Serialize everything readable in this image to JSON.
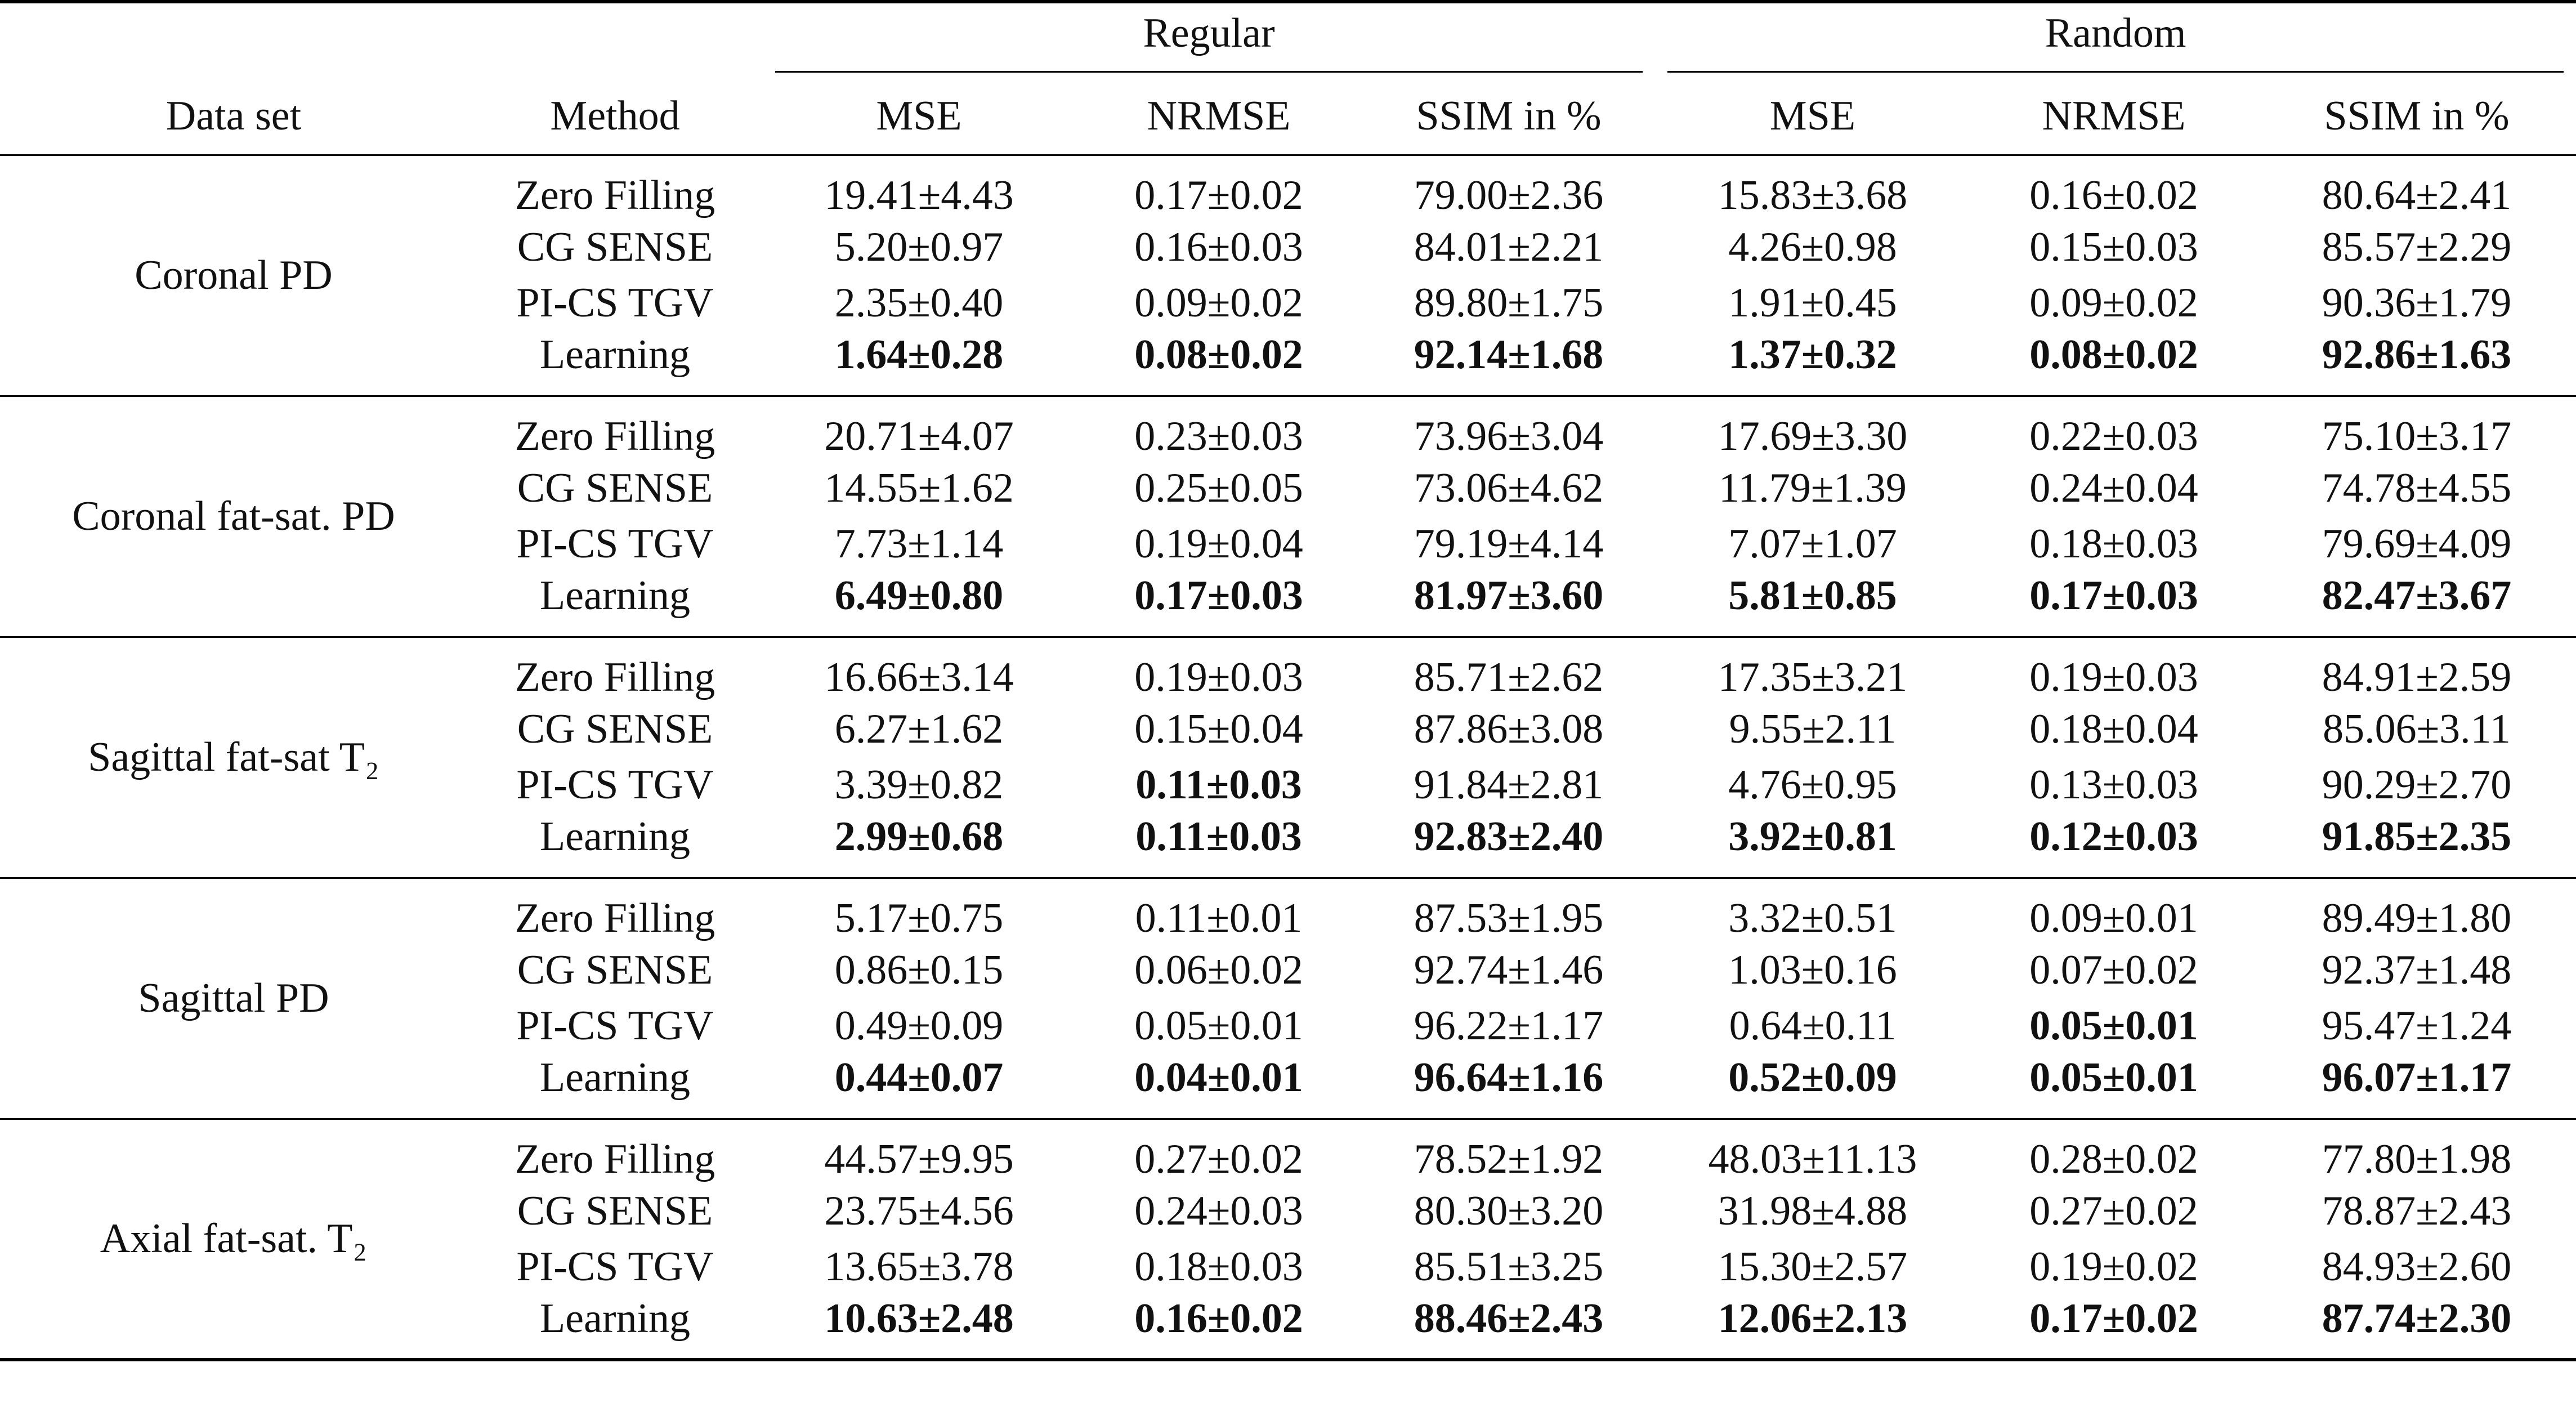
{
  "header": {
    "groups": [
      "Regular",
      "Random"
    ],
    "columns": [
      "Data set",
      "Method",
      "MSE",
      "NRMSE",
      "SSIM in %",
      "MSE",
      "NRMSE",
      "SSIM in %"
    ]
  },
  "table": {
    "groups": [
      {
        "dataset": "Coronal PD",
        "rows": [
          {
            "method": "Zero Filling",
            "cells": [
              "19.41±4.43",
              "0.17±0.02",
              "79.00±2.36",
              "15.83±3.68",
              "0.16±0.02",
              "80.64±2.41"
            ],
            "bold": [
              false,
              false,
              false,
              false,
              false,
              false
            ]
          },
          {
            "method": "CG SENSE",
            "cells": [
              "5.20±0.97",
              "0.16±0.03",
              "84.01±2.21",
              "4.26±0.98",
              "0.15±0.03",
              "85.57±2.29"
            ],
            "bold": [
              false,
              false,
              false,
              false,
              false,
              false
            ]
          },
          {
            "method": "PI-CS TGV",
            "cells": [
              "2.35±0.40",
              "0.09±0.02",
              "89.80±1.75",
              "1.91±0.45",
              "0.09±0.02",
              "90.36±1.79"
            ],
            "bold": [
              false,
              false,
              false,
              false,
              false,
              false
            ]
          },
          {
            "method": "Learning",
            "cells": [
              "1.64±0.28",
              "0.08±0.02",
              "92.14±1.68",
              "1.37±0.32",
              "0.08±0.02",
              "92.86±1.63"
            ],
            "bold": [
              true,
              true,
              true,
              true,
              true,
              true
            ]
          }
        ]
      },
      {
        "dataset": "Coronal fat-sat. PD",
        "rows": [
          {
            "method": "Zero Filling",
            "cells": [
              "20.71±4.07",
              "0.23±0.03",
              "73.96±3.04",
              "17.69±3.30",
              "0.22±0.03",
              "75.10±3.17"
            ],
            "bold": [
              false,
              false,
              false,
              false,
              false,
              false
            ]
          },
          {
            "method": "CG SENSE",
            "cells": [
              "14.55±1.62",
              "0.25±0.05",
              "73.06±4.62",
              "11.79±1.39",
              "0.24±0.04",
              "74.78±4.55"
            ],
            "bold": [
              false,
              false,
              false,
              false,
              false,
              false
            ]
          },
          {
            "method": "PI-CS TGV",
            "cells": [
              "7.73±1.14",
              "0.19±0.04",
              "79.19±4.14",
              "7.07±1.07",
              "0.18±0.03",
              "79.69±4.09"
            ],
            "bold": [
              false,
              false,
              false,
              false,
              false,
              false
            ]
          },
          {
            "method": "Learning",
            "cells": [
              "6.49±0.80",
              "0.17±0.03",
              "81.97±3.60",
              "5.81±0.85",
              "0.17±0.03",
              "82.47±3.67"
            ],
            "bold": [
              true,
              true,
              true,
              true,
              true,
              true
            ]
          }
        ]
      },
      {
        "dataset": "Sagittal fat-sat T₂",
        "rows": [
          {
            "method": "Zero Filling",
            "cells": [
              "16.66±3.14",
              "0.19±0.03",
              "85.71±2.62",
              "17.35±3.21",
              "0.19±0.03",
              "84.91±2.59"
            ],
            "bold": [
              false,
              false,
              false,
              false,
              false,
              false
            ]
          },
          {
            "method": "CG SENSE",
            "cells": [
              "6.27±1.62",
              "0.15±0.04",
              "87.86±3.08",
              "9.55±2.11",
              "0.18±0.04",
              "85.06±3.11"
            ],
            "bold": [
              false,
              false,
              false,
              false,
              false,
              false
            ]
          },
          {
            "method": "PI-CS TGV",
            "cells": [
              "3.39±0.82",
              "0.11±0.03",
              "91.84±2.81",
              "4.76±0.95",
              "0.13±0.03",
              "90.29±2.70"
            ],
            "bold": [
              false,
              true,
              false,
              false,
              false,
              false
            ]
          },
          {
            "method": "Learning",
            "cells": [
              "2.99±0.68",
              "0.11±0.03",
              "92.83±2.40",
              "3.92±0.81",
              "0.12±0.03",
              "91.85±2.35"
            ],
            "bold": [
              true,
              true,
              true,
              true,
              true,
              true
            ]
          }
        ]
      },
      {
        "dataset": "Sagittal PD",
        "rows": [
          {
            "method": "Zero Filling",
            "cells": [
              "5.17±0.75",
              "0.11±0.01",
              "87.53±1.95",
              "3.32±0.51",
              "0.09±0.01",
              "89.49±1.80"
            ],
            "bold": [
              false,
              false,
              false,
              false,
              false,
              false
            ]
          },
          {
            "method": "CG SENSE",
            "cells": [
              "0.86±0.15",
              "0.06±0.02",
              "92.74±1.46",
              "1.03±0.16",
              "0.07±0.02",
              "92.37±1.48"
            ],
            "bold": [
              false,
              false,
              false,
              false,
              false,
              false
            ]
          },
          {
            "method": "PI-CS TGV",
            "cells": [
              "0.49±0.09",
              "0.05±0.01",
              "96.22±1.17",
              "0.64±0.11",
              "0.05±0.01",
              "95.47±1.24"
            ],
            "bold": [
              false,
              false,
              false,
              false,
              true,
              false
            ]
          },
          {
            "method": "Learning",
            "cells": [
              "0.44±0.07",
              "0.04±0.01",
              "96.64±1.16",
              "0.52±0.09",
              "0.05±0.01",
              "96.07±1.17"
            ],
            "bold": [
              true,
              true,
              true,
              true,
              true,
              true
            ]
          }
        ]
      },
      {
        "dataset": "Axial fat-sat. T₂",
        "rows": [
          {
            "method": "Zero Filling",
            "cells": [
              "44.57±9.95",
              "0.27±0.02",
              "78.52±1.92",
              "48.03±11.13",
              "0.28±0.02",
              "77.80±1.98"
            ],
            "bold": [
              false,
              false,
              false,
              false,
              false,
              false
            ]
          },
          {
            "method": "CG SENSE",
            "cells": [
              "23.75±4.56",
              "0.24±0.03",
              "80.30±3.20",
              "31.98±4.88",
              "0.27±0.02",
              "78.87±2.43"
            ],
            "bold": [
              false,
              false,
              false,
              false,
              false,
              false
            ]
          },
          {
            "method": "PI-CS TGV",
            "cells": [
              "13.65±3.78",
              "0.18±0.03",
              "85.51±3.25",
              "15.30±2.57",
              "0.19±0.02",
              "84.93±2.60"
            ],
            "bold": [
              false,
              false,
              false,
              false,
              false,
              false
            ]
          },
          {
            "method": "Learning",
            "cells": [
              "10.63±2.48",
              "0.16±0.02",
              "88.46±2.43",
              "12.06±2.13",
              "0.17±0.02",
              "87.74±2.30"
            ],
            "bold": [
              true,
              true,
              true,
              true,
              true,
              true
            ]
          }
        ]
      }
    ]
  }
}
